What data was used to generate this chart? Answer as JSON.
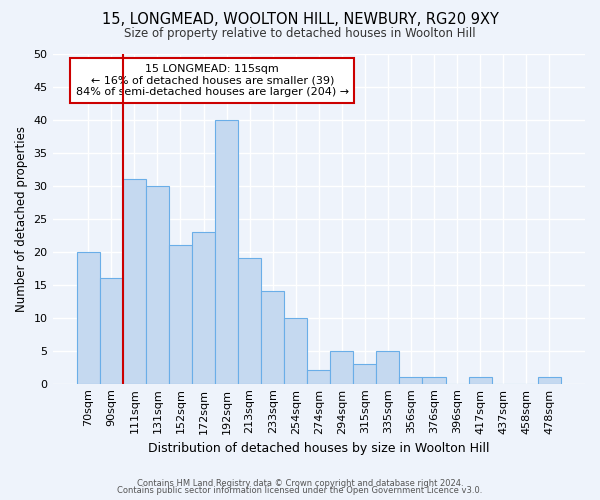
{
  "title1": "15, LONGMEAD, WOOLTON HILL, NEWBURY, RG20 9XY",
  "title2": "Size of property relative to detached houses in Woolton Hill",
  "xlabel": "Distribution of detached houses by size in Woolton Hill",
  "ylabel": "Number of detached properties",
  "footer1": "Contains HM Land Registry data © Crown copyright and database right 2024.",
  "footer2": "Contains public sector information licensed under the Open Government Licence v3.0.",
  "categories": [
    "70sqm",
    "90sqm",
    "111sqm",
    "131sqm",
    "152sqm",
    "172sqm",
    "192sqm",
    "213sqm",
    "233sqm",
    "254sqm",
    "274sqm",
    "294sqm",
    "315sqm",
    "335sqm",
    "356sqm",
    "376sqm",
    "396sqm",
    "417sqm",
    "437sqm",
    "458sqm",
    "478sqm"
  ],
  "values": [
    20,
    16,
    31,
    30,
    21,
    23,
    40,
    19,
    14,
    10,
    2,
    5,
    3,
    5,
    1,
    1,
    0,
    1,
    0,
    0,
    1
  ],
  "bar_color": "#c5d9f0",
  "bar_edge_color": "#6aaee8",
  "background_color": "#eef3fb",
  "grid_color": "#ffffff",
  "vline_color": "#cc0000",
  "vline_x_index": 2,
  "annotation_text": "15 LONGMEAD: 115sqm\n← 16% of detached houses are smaller (39)\n84% of semi-detached houses are larger (204) →",
  "annotation_box_color": "#ffffff",
  "annotation_box_edge": "#cc0000",
  "ylim": [
    0,
    50
  ],
  "yticks": [
    0,
    5,
    10,
    15,
    20,
    25,
    30,
    35,
    40,
    45,
    50
  ]
}
